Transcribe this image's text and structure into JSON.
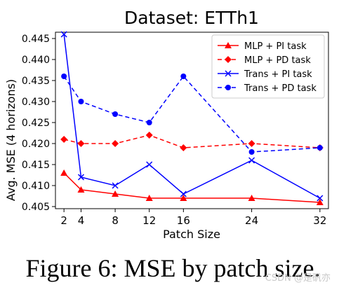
{
  "chart_data": {
    "type": "line",
    "title": "Dataset: ETTh1",
    "xlabel": "Patch Size",
    "ylabel": "Avg. MSE (4 horizons)",
    "x": [
      2,
      4,
      8,
      12,
      16,
      24,
      32
    ],
    "x_tick_labels": [
      "2",
      "4",
      "8",
      "12",
      "16",
      "24",
      "32"
    ],
    "xlim": [
      1,
      33
    ],
    "ylim": [
      0.4045,
      0.4465
    ],
    "y_ticks": [
      0.405,
      0.41,
      0.415,
      0.42,
      0.425,
      0.43,
      0.435,
      0.44,
      0.445
    ],
    "y_tick_labels": [
      "0.405",
      "0.410",
      "0.415",
      "0.420",
      "0.425",
      "0.430",
      "0.435",
      "0.440",
      "0.445"
    ],
    "grid": false,
    "legend_position": "top-right",
    "series": [
      {
        "name": "MLP + PI task",
        "color": "#ff0000",
        "line_style": "solid",
        "marker": "triangle",
        "values": [
          0.413,
          0.409,
          0.408,
          0.407,
          0.407,
          0.407,
          0.406
        ]
      },
      {
        "name": "MLP + PD task",
        "color": "#ff0000",
        "line_style": "dashed",
        "marker": "diamond",
        "values": [
          0.421,
          0.42,
          0.42,
          0.422,
          0.419,
          0.42,
          0.419
        ]
      },
      {
        "name": "Trans + PI task",
        "color": "#0000ff",
        "line_style": "solid",
        "marker": "x",
        "values": [
          0.446,
          0.412,
          0.41,
          0.415,
          0.408,
          0.416,
          0.407
        ]
      },
      {
        "name": "Trans + PD task",
        "color": "#0000ff",
        "line_style": "dashed",
        "marker": "circle",
        "values": [
          0.436,
          0.43,
          0.427,
          0.425,
          0.436,
          0.418,
          0.419
        ]
      }
    ]
  },
  "caption": "Figure 6: MSE by patch size.",
  "watermark": "CSDN @是矾亦"
}
